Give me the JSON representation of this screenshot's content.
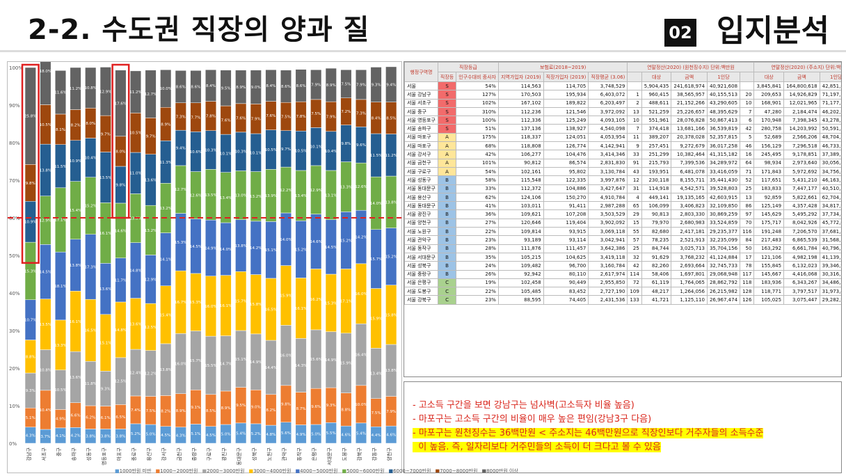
{
  "header": {
    "title": "2-2. 수도권 직장의 양과 질",
    "badge": "02",
    "section": "입지분석"
  },
  "chart_data": {
    "type": "bar",
    "stacked": true,
    "percent": true,
    "y_ticks": [
      "100%",
      "90%",
      "80%",
      "70%",
      "60%",
      "50%",
      "40%",
      "30%",
      "20%",
      "10%",
      "0%"
    ],
    "categories": [
      "강남구",
      "서초구",
      "중구",
      "송파구",
      "성동구",
      "영등포구",
      "마포구",
      "종로구",
      "용산구",
      "강서구",
      "금천구",
      "중랑구",
      "구로구",
      "광진구",
      "동대문구",
      "성북구",
      "노원구",
      "관악구",
      "동작구",
      "은평구",
      "서대문구",
      "도봉구",
      "강북구",
      "강동구",
      "양천구"
    ],
    "series_colors": [
      "#5b9bd5",
      "#ed7d31",
      "#a5a5a5",
      "#ffc000",
      "#4472c4",
      "#70ad47",
      "#255e91",
      "#9e480e",
      "#636363"
    ],
    "legend": [
      "1000만원 미만",
      "1000~2000만원",
      "2000~3000만원",
      "3000~4000만원",
      "4000~5000만원",
      "5000~6000만원",
      "6000~7000만원",
      "7000~8000만원",
      "8000만원 이상"
    ],
    "segments": [
      [
        4.3,
        5.1,
        9.3,
        8.8,
        10.7,
        15.3,
        10.9,
        9.8,
        25.8
      ],
      [
        3.7,
        10.4,
        10.8,
        13.5,
        14.5,
        12.9,
        13.8,
        10.5,
        18.0
      ],
      [
        4.1,
        4.9,
        10.5,
        13.3,
        18.1,
        17.1,
        11.5,
        8.1,
        11.6
      ],
      [
        4.2,
        6.6,
        13.6,
        16.1,
        13.8,
        15.4,
        10.9,
        8.2,
        11.2
      ],
      [
        3.8,
        6.2,
        11.8,
        16.5,
        17.3,
        15.2,
        10.4,
        8.0,
        10.8
      ],
      [
        3.8,
        6.1,
        9.3,
        15.1,
        13.6,
        16.1,
        13.5,
        9.7,
        12.9
      ],
      [
        3.8,
        6.5,
        12.5,
        14.8,
        11.7,
        14.6,
        9.8,
        8.0,
        17.6
      ],
      [
        5.2,
        7.4,
        12.4,
        13.6,
        14.8,
        13.0,
        11.0,
        10.5,
        11.2
      ],
      [
        5.0,
        7.5,
        12.2,
        12.5,
        12.9,
        13.2,
        13.6,
        9.7,
        12.7
      ],
      [
        4.5,
        8.2,
        13.8,
        15.4,
        14.1,
        13.2,
        11.3,
        8.9,
        10.0
      ],
      [
        4.3,
        8.9,
        16.0,
        16.7,
        15.3,
        12.7,
        9.4,
        7.3,
        8.6
      ],
      [
        5.1,
        9.1,
        15.7,
        15.3,
        14.5,
        12.6,
        10.6,
        7.7,
        8.6
      ],
      [
        4.5,
        8.5,
        15.5,
        16.0,
        14.9,
        13.5,
        10.3,
        7.8,
        8.4
      ],
      [
        5.0,
        8.9,
        14.7,
        16.1,
        14.0,
        13.4,
        10.1,
        7.6,
        9.5
      ],
      [
        5.4,
        9.5,
        15.1,
        15.7,
        13.8,
        13.0,
        10.3,
        7.6,
        8.9
      ],
      [
        5.2,
        9.0,
        14.9,
        15.8,
        14.2,
        13.2,
        10.1,
        7.9,
        9.0
      ],
      [
        4.8,
        8.2,
        14.4,
        16.5,
        15.1,
        13.9,
        10.5,
        7.6,
        8.4
      ],
      [
        5.6,
        9.8,
        16.0,
        15.9,
        14.0,
        12.2,
        9.7,
        7.5,
        8.6
      ],
      [
        4.9,
        8.7,
        14.3,
        16.1,
        15.2,
        13.4,
        10.5,
        7.8,
        8.6
      ],
      [
        5.0,
        9.6,
        15.6,
        16.2,
        14.6,
        12.9,
        10.1,
        7.5,
        7.9
      ],
      [
        5.5,
        9.3,
        14.9,
        15.3,
        14.5,
        13.1,
        10.4,
        7.9,
        8.9
      ],
      [
        4.6,
        8.8,
        15.9,
        17.1,
        15.2,
        13.3,
        9.8,
        7.2,
        7.5
      ],
      [
        5.4,
        10.0,
        16.4,
        16.0,
        14.2,
        12.6,
        9.6,
        7.3,
        7.9
      ],
      [
        4.4,
        7.5,
        13.4,
        15.9,
        15.7,
        14.0,
        11.5,
        8.4,
        9.3
      ],
      [
        4.6,
        7.9,
        13.8,
        15.8,
        15.2,
        13.8,
        11.2,
        8.5,
        9.4
      ]
    ]
  },
  "table": {
    "group_headers": [
      "행정구역명",
      "직장등급",
      "보험료(2018~2019)",
      "연말정산(2020) (원천징수지) 단위:백만원",
      "연말정산(2020) (주소지) 단위:백만원"
    ],
    "col_headers": [
      "",
      "직장등",
      "인구수대비 종사자",
      "지역가입자 (2019)",
      "직장가입자 (2019)",
      "직장평균 (3.06)",
      "",
      "대상",
      "금액",
      "1인당",
      "",
      "대상",
      "금액",
      "1인당",
      "순"
    ],
    "rows": [
      [
        "서울",
        "S",
        "54%",
        "114,563",
        "114,705",
        "3,748,529",
        "",
        "5,904,435",
        "241,618,974",
        "40,921,608",
        "",
        "3,845,841",
        "164,800,618",
        "42,851,646",
        ""
      ],
      [
        "서울 강남구",
        "S",
        "127%",
        "170,503",
        "195,934",
        "6,403,072",
        "1",
        "960,415",
        "38,565,957",
        "40,155,513",
        "20",
        "209,653",
        "14,926,829",
        "71,197,784",
        "1"
      ],
      [
        "서울 서초구",
        "S",
        "102%",
        "167,102",
        "189,822",
        "6,203,497",
        "2",
        "488,611",
        "21,152,266",
        "43,290,605",
        "10",
        "168,901",
        "12,021,965",
        "71,177,583",
        "2"
      ],
      [
        "서울 중구",
        "S",
        "310%",
        "112,236",
        "121,546",
        "3,972,092",
        "13",
        "521,259",
        "25,226,657",
        "48,395,629",
        "7",
        "47,280",
        "2,184,474",
        "46,202,919",
        "11"
      ],
      [
        "서울 영등포구",
        "S",
        "100%",
        "112,336",
        "125,249",
        "4,093,105",
        "10",
        "551,961",
        "28,076,828",
        "50,867,413",
        "6",
        "170,948",
        "7,398,345",
        "43,278,336",
        "20"
      ],
      [
        "서울 송파구",
        "S",
        "51%",
        "137,136",
        "138,927",
        "4,540,098",
        "7",
        "374,418",
        "13,681,166",
        "36,539,819",
        "42",
        "280,758",
        "14,203,992",
        "50,591,584",
        "5"
      ],
      [
        "서울 마포구",
        "A",
        "175%",
        "118,337",
        "124,051",
        "4,053,954",
        "11",
        "389,207",
        "20,378,028",
        "52,357,815",
        "5",
        "52,689",
        "2,566,206",
        "48,704,777",
        "6"
      ],
      [
        "서울 마포구",
        "A",
        "68%",
        "118,808",
        "126,774",
        "4,142,941",
        "9",
        "257,451",
        "9,272,679",
        "36,017,258",
        "46",
        "156,129",
        "7,296,518",
        "46,733,906",
        "8"
      ],
      [
        "서울 강서구",
        "A",
        "42%",
        "106,277",
        "104,476",
        "3,414,346",
        "33",
        "251,299",
        "10,382,464",
        "41,315,182",
        "16",
        "245,495",
        "9,178,851",
        "37,389,157",
        "49"
      ],
      [
        "서울 금천구",
        "A",
        "101%",
        "90,812",
        "86,574",
        "2,831,830",
        "91",
        "215,793",
        "7,399,536",
        "34,289,972",
        "64",
        "98,934",
        "2,973,640",
        "30,056,806",
        "114"
      ],
      [
        "서울 구로구",
        "A",
        "54%",
        "102,161",
        "95,802",
        "3,130,784",
        "43",
        "193,951",
        "6,481,078",
        "33,416,059",
        "71",
        "171,843",
        "5,972,692",
        "34,756,679",
        "70"
      ],
      [
        "서울 성동구",
        "B",
        "58%",
        "115,548",
        "122,335",
        "3,997,876",
        "12",
        "230,118",
        "8,155,711",
        "35,441,430",
        "52",
        "117,651",
        "5,431,210",
        "46,163,739",
        "13"
      ],
      [
        "서울 동대문구",
        "B",
        "33%",
        "112,372",
        "104,886",
        "3,427,647",
        "31",
        "114,918",
        "4,542,571",
        "39,528,803",
        "25",
        "183,833",
        "7,447,177",
        "40,510,556",
        "28"
      ],
      [
        "서울 용산구",
        "B",
        "62%",
        "124,106",
        "150,270",
        "4,910,784",
        "4",
        "449,141",
        "19,135,165",
        "42,603,915",
        "13",
        "92,859",
        "5,822,661",
        "62,704,326",
        "3"
      ],
      [
        "서울 동대문구",
        "B",
        "41%",
        "103,011",
        "91,411",
        "2,987,288",
        "65",
        "106,099",
        "3,406,823",
        "32,109,850",
        "86",
        "125,149",
        "4,357,428",
        "34,817,921",
        "67"
      ],
      [
        "서울 광진구",
        "B",
        "36%",
        "109,621",
        "107,208",
        "3,503,529",
        "29",
        "90,813",
        "2,803,330",
        "30,869,259",
        "97",
        "145,629",
        "5,495,292",
        "37,734,874",
        "46"
      ],
      [
        "서울 양천구",
        "B",
        "27%",
        "120,646",
        "119,404",
        "3,902,092",
        "15",
        "79,970",
        "2,680,983",
        "33,524,859",
        "70",
        "175,717",
        "8,042,926",
        "45,772,043",
        "15"
      ],
      [
        "서울 노원구",
        "B",
        "22%",
        "109,814",
        "93,915",
        "3,069,118",
        "55",
        "82,680",
        "2,417,181",
        "29,235,377",
        "116",
        "191,248",
        "7,206,570",
        "37,681,806",
        "47"
      ],
      [
        "서울 관악구",
        "B",
        "23%",
        "93,189",
        "93,114",
        "3,042,941",
        "57",
        "78,235",
        "2,521,913",
        "32,235,099",
        "84",
        "217,483",
        "6,865,539",
        "31,568,164",
        "103"
      ],
      [
        "서울 동작구",
        "B",
        "28%",
        "111,876",
        "111,457",
        "3,642,386",
        "25",
        "84,744",
        "3,025,713",
        "35,704,156",
        "50",
        "163,292",
        "6,661,784",
        "40,796,757",
        "26"
      ],
      [
        "서울 서대문구",
        "B",
        "35%",
        "105,215",
        "104,625",
        "3,419,118",
        "32",
        "91,629",
        "3,768,232",
        "41,124,884",
        "17",
        "121,106",
        "4,982,198",
        "41,139,151",
        "23"
      ],
      [
        "서울 성북구",
        "B",
        "24%",
        "109,482",
        "96,700",
        "3,160,784",
        "42",
        "82,260",
        "2,693,664",
        "32,745,733",
        "78",
        "155,845",
        "6,132,023",
        "39,346,934",
        "33"
      ],
      [
        "서울 중랑구",
        "B",
        "26%",
        "92,942",
        "80,110",
        "2,617,974",
        "114",
        "58,406",
        "1,697,801",
        "29,068,948",
        "117",
        "145,667",
        "4,416,068",
        "30,316,187",
        "112"
      ],
      [
        "서울 은평구",
        "C",
        "19%",
        "102,458",
        "90,449",
        "2,955,850",
        "72",
        "61,119",
        "1,764,065",
        "28,862,792",
        "118",
        "183,936",
        "6,343,267",
        "34,486,272",
        "75"
      ],
      [
        "서울 도봉구",
        "C",
        "22%",
        "105,485",
        "83,452",
        "2,727,190",
        "109",
        "48,217",
        "1,264,056",
        "26,215,982",
        "128",
        "118,771",
        "3,797,517",
        "31,973,436",
        "100"
      ],
      [
        "서울 강북구",
        "C",
        "23%",
        "88,595",
        "74,405",
        "2,431,536",
        "133",
        "41,721",
        "1,125,110",
        "26,967,474",
        "126",
        "105,025",
        "3,075,447",
        "29,282,999",
        "120"
      ]
    ],
    "grade_colors": {
      "S": "#f26b6b",
      "A": "#ffe699",
      "B": "#9dc3e6",
      "C": "#a9d18e"
    }
  },
  "notes": [
    "- 고소득 구간을 보면 강남구는 넘사벽(고소득자 비율 높음)",
    "- 마포구는 고소득 구간의 비율이 매우 높은 편임(강남3구 다음)",
    "- 마포구는 원천징수는 36백만원 < 주소지는 46백만원으로 직장인보다 거주자들의 소득수준",
    "  이 높음. 즉, 일자리보다 거주민들의 소득이 더 크다고 볼 수 있음"
  ]
}
